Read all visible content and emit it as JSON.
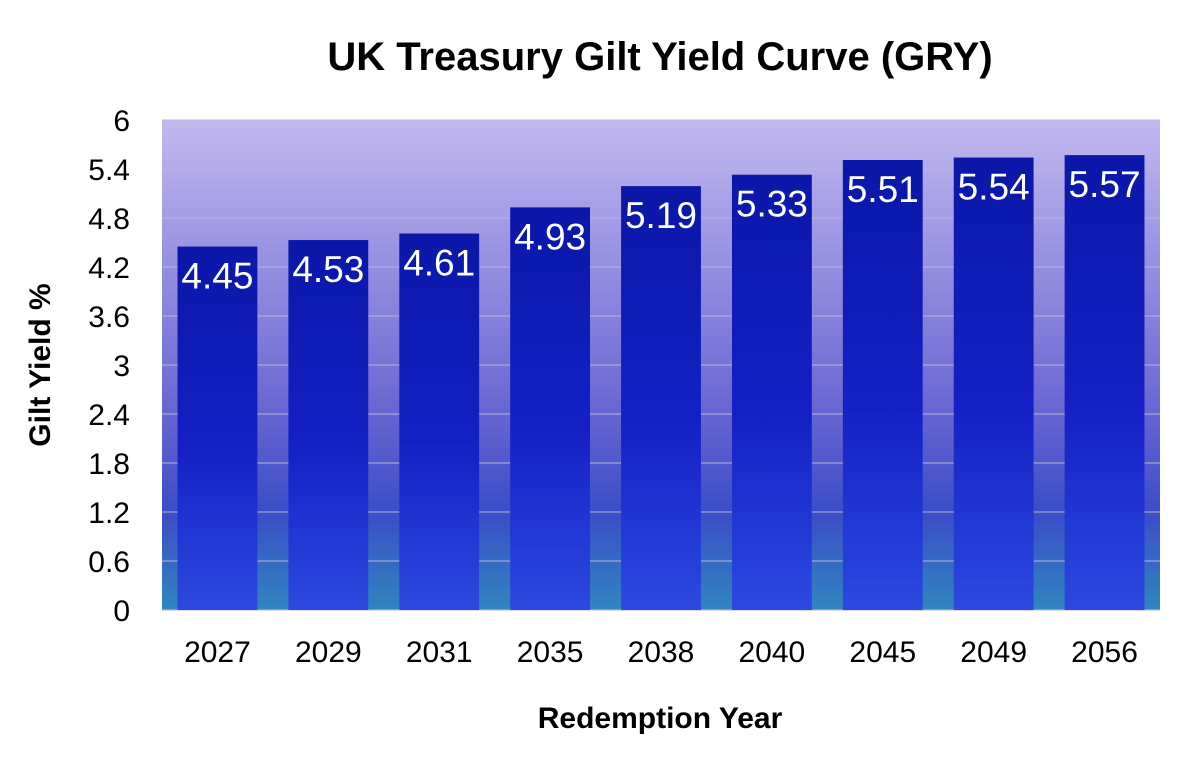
{
  "chart_data": {
    "type": "bar",
    "title": "UK Treasury Gilt Yield Curve (GRY)",
    "xlabel": "Redemption Year",
    "ylabel": "Gilt Yield %",
    "categories": [
      "2027",
      "2029",
      "2031",
      "2035",
      "2038",
      "2040",
      "2045",
      "2049",
      "2056"
    ],
    "values": [
      4.45,
      4.53,
      4.61,
      4.93,
      5.19,
      5.33,
      5.51,
      5.54,
      5.57
    ],
    "data_labels": [
      "4.45",
      "4.53",
      "4.61",
      "4.93",
      "5.19",
      "5.33",
      "5.51",
      "5.54",
      "5.57"
    ],
    "ylim": [
      0,
      6
    ],
    "yticks": [
      "0",
      "0.6",
      "1.2",
      "1.8",
      "2.4",
      "3",
      "3.6",
      "4.2",
      "4.8",
      "5.4",
      "6"
    ],
    "grid": true,
    "legend": "none",
    "colors": {
      "plot_top": "#c2b8ef",
      "plot_bottom": "#2f86bf",
      "bar_top": "#0a17a8",
      "bar_mid": "#1420c4",
      "bar_bottom": "#2d49e0",
      "label": "#ffffff",
      "text": "#000000"
    }
  }
}
